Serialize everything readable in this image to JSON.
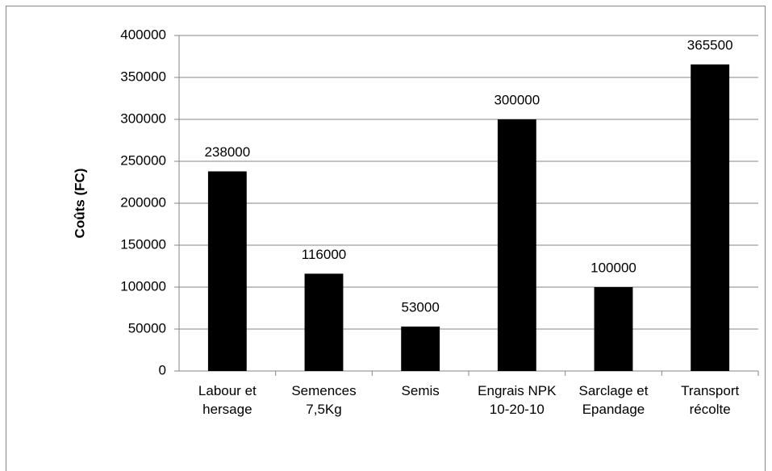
{
  "chart_data": {
    "type": "bar",
    "y_axis_label": "Coûts (FC)",
    "categories": [
      "Labour et hersage",
      "Semences 7,5Kg",
      "Semis",
      "Engrais NPK 10-20-10",
      "Sarclage et Epandage",
      "Transport récolte"
    ],
    "values": [
      238000,
      116000,
      53000,
      300000,
      100000,
      365500
    ],
    "color": "#000000",
    "ylim": [
      0,
      400000
    ],
    "yticks": [
      0,
      50000,
      100000,
      150000,
      200000,
      250000,
      300000,
      350000,
      400000
    ],
    "grid": true
  }
}
